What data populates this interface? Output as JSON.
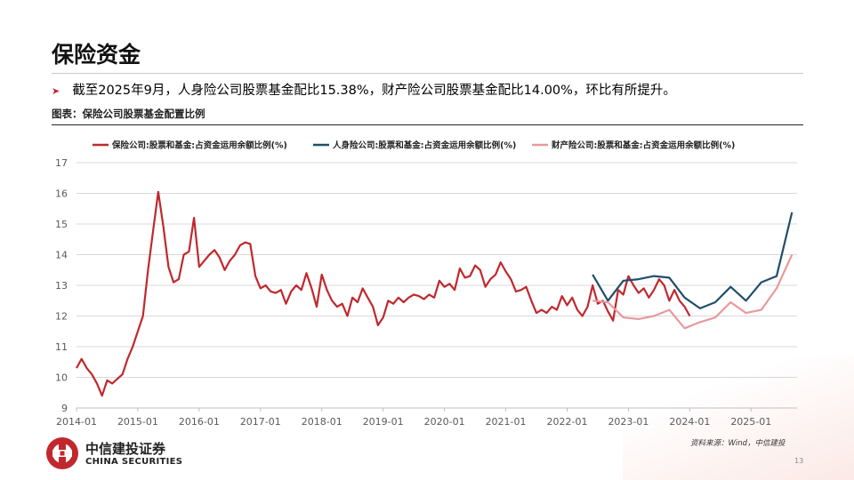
{
  "page": {
    "title": "保险资金",
    "bullet": "截至2025年9月，人身险公司股票基金配比15.38%，财产险公司股票基金配比14.00%，环比有所提升。",
    "figure_caption": "图表：保险公司股票基金配置比例",
    "source": "资料来源：Wind，中信建投",
    "page_number": "13",
    "logo_cn": "中信建投证券",
    "logo_en": "CHINA SECURITIES"
  },
  "chart_data": {
    "type": "line",
    "title": "",
    "xlabel": "",
    "ylabel": "",
    "ylim": [
      9,
      17
    ],
    "y_ticks": [
      "9",
      "10",
      "11",
      "12",
      "13",
      "14",
      "15",
      "16",
      "17"
    ],
    "x_ticks": [
      "2014-01",
      "2015-01",
      "2016-01",
      "2017-01",
      "2018-01",
      "2019-01",
      "2020-01",
      "2021-01",
      "2022-01",
      "2023-01",
      "2024-01",
      "2025-01"
    ],
    "xlim": [
      "2014-01",
      "2025-10"
    ],
    "grid": true,
    "legend_position": "top",
    "series": [
      {
        "name": "保险公司:股票和基金:占资金运用余额比例(%)",
        "color": "#c0282d",
        "points": [
          [
            "2014-01",
            10.3
          ],
          [
            "2014-02",
            10.6
          ],
          [
            "2014-03",
            10.3
          ],
          [
            "2014-04",
            10.1
          ],
          [
            "2014-05",
            9.8
          ],
          [
            "2014-06",
            9.4
          ],
          [
            "2014-07",
            9.9
          ],
          [
            "2014-08",
            9.8
          ],
          [
            "2014-09",
            9.95
          ],
          [
            "2014-10",
            10.1
          ],
          [
            "2014-11",
            10.6
          ],
          [
            "2014-12",
            11.0
          ],
          [
            "2015-01",
            11.5
          ],
          [
            "2015-02",
            12.0
          ],
          [
            "2015-03",
            13.5
          ],
          [
            "2015-04",
            14.8
          ],
          [
            "2015-05",
            16.05
          ],
          [
            "2015-06",
            14.9
          ],
          [
            "2015-07",
            13.6
          ],
          [
            "2015-08",
            13.1
          ],
          [
            "2015-09",
            13.2
          ],
          [
            "2015-10",
            14.0
          ],
          [
            "2015-11",
            14.1
          ],
          [
            "2015-12",
            15.2
          ],
          [
            "2016-01",
            13.6
          ],
          [
            "2016-02",
            13.8
          ],
          [
            "2016-03",
            14.0
          ],
          [
            "2016-04",
            14.15
          ],
          [
            "2016-05",
            13.9
          ],
          [
            "2016-06",
            13.5
          ],
          [
            "2016-07",
            13.8
          ],
          [
            "2016-08",
            14.0
          ],
          [
            "2016-09",
            14.3
          ],
          [
            "2016-10",
            14.4
          ],
          [
            "2016-11",
            14.35
          ],
          [
            "2016-12",
            13.3
          ],
          [
            "2017-01",
            12.9
          ],
          [
            "2017-02",
            13.0
          ],
          [
            "2017-03",
            12.8
          ],
          [
            "2017-04",
            12.75
          ],
          [
            "2017-05",
            12.85
          ],
          [
            "2017-06",
            12.4
          ],
          [
            "2017-07",
            12.8
          ],
          [
            "2017-08",
            13.0
          ],
          [
            "2017-09",
            12.85
          ],
          [
            "2017-10",
            13.4
          ],
          [
            "2017-11",
            12.9
          ],
          [
            "2017-12",
            12.3
          ],
          [
            "2018-01",
            13.35
          ],
          [
            "2018-02",
            12.85
          ],
          [
            "2018-03",
            12.5
          ],
          [
            "2018-04",
            12.3
          ],
          [
            "2018-05",
            12.4
          ],
          [
            "2018-06",
            12.0
          ],
          [
            "2018-07",
            12.6
          ],
          [
            "2018-08",
            12.45
          ],
          [
            "2018-09",
            12.9
          ],
          [
            "2018-10",
            12.6
          ],
          [
            "2018-11",
            12.3
          ],
          [
            "2018-12",
            11.7
          ],
          [
            "2019-01",
            11.95
          ],
          [
            "2019-02",
            12.5
          ],
          [
            "2019-03",
            12.4
          ],
          [
            "2019-04",
            12.6
          ],
          [
            "2019-05",
            12.45
          ],
          [
            "2019-06",
            12.6
          ],
          [
            "2019-07",
            12.7
          ],
          [
            "2019-08",
            12.65
          ],
          [
            "2019-09",
            12.55
          ],
          [
            "2019-10",
            12.7
          ],
          [
            "2019-11",
            12.6
          ],
          [
            "2019-12",
            13.15
          ],
          [
            "2020-01",
            12.95
          ],
          [
            "2020-02",
            13.05
          ],
          [
            "2020-03",
            12.85
          ],
          [
            "2020-04",
            13.55
          ],
          [
            "2020-05",
            13.25
          ],
          [
            "2020-06",
            13.3
          ],
          [
            "2020-07",
            13.65
          ],
          [
            "2020-08",
            13.5
          ],
          [
            "2020-09",
            12.95
          ],
          [
            "2020-10",
            13.2
          ],
          [
            "2020-11",
            13.35
          ],
          [
            "2020-12",
            13.75
          ],
          [
            "2021-01",
            13.45
          ],
          [
            "2021-02",
            13.2
          ],
          [
            "2021-03",
            12.8
          ],
          [
            "2021-04",
            12.85
          ],
          [
            "2021-05",
            12.95
          ],
          [
            "2021-06",
            12.5
          ],
          [
            "2021-07",
            12.1
          ],
          [
            "2021-08",
            12.2
          ],
          [
            "2021-09",
            12.1
          ],
          [
            "2021-10",
            12.3
          ],
          [
            "2021-11",
            12.2
          ],
          [
            "2021-12",
            12.65
          ],
          [
            "2022-01",
            12.35
          ],
          [
            "2022-02",
            12.6
          ],
          [
            "2022-03",
            12.2
          ],
          [
            "2022-04",
            12.0
          ],
          [
            "2022-05",
            12.3
          ],
          [
            "2022-06",
            13.0
          ],
          [
            "2022-07",
            12.4
          ],
          [
            "2022-08",
            12.5
          ],
          [
            "2022-09",
            12.15
          ],
          [
            "2022-10",
            11.85
          ],
          [
            "2022-11",
            12.85
          ],
          [
            "2022-12",
            12.7
          ],
          [
            "2023-01",
            13.3
          ],
          [
            "2023-02",
            13.0
          ],
          [
            "2023-03",
            12.75
          ],
          [
            "2023-04",
            12.9
          ],
          [
            "2023-05",
            12.6
          ],
          [
            "2023-06",
            12.85
          ],
          [
            "2023-07",
            13.2
          ],
          [
            "2023-08",
            13.0
          ],
          [
            "2023-09",
            12.5
          ],
          [
            "2023-10",
            12.85
          ],
          [
            "2023-11",
            12.5
          ],
          [
            "2023-12",
            12.3
          ],
          [
            "2024-01",
            12.0
          ]
        ]
      },
      {
        "name": "人身险公司:股票和基金:占资金运用余额比例(%)",
        "color": "#1f4e6b",
        "points": [
          [
            "2022-06",
            13.35
          ],
          [
            "2022-09",
            12.5
          ],
          [
            "2022-12",
            13.15
          ],
          [
            "2023-03",
            13.2
          ],
          [
            "2023-06",
            13.3
          ],
          [
            "2023-09",
            13.25
          ],
          [
            "2023-12",
            12.6
          ],
          [
            "2024-03",
            12.25
          ],
          [
            "2024-06",
            12.45
          ],
          [
            "2024-09",
            12.95
          ],
          [
            "2024-12",
            12.5
          ],
          [
            "2025-03",
            13.1
          ],
          [
            "2025-06",
            13.3
          ],
          [
            "2025-09",
            15.38
          ]
        ]
      },
      {
        "name": "财产险公司:股票和基金:占资金运用余额比例(%)",
        "color": "#e8999c",
        "points": [
          [
            "2022-06",
            12.5
          ],
          [
            "2022-09",
            12.45
          ],
          [
            "2022-12",
            11.95
          ],
          [
            "2023-03",
            11.9
          ],
          [
            "2023-06",
            12.0
          ],
          [
            "2023-09",
            12.2
          ],
          [
            "2023-12",
            11.6
          ],
          [
            "2024-03",
            11.8
          ],
          [
            "2024-06",
            11.95
          ],
          [
            "2024-09",
            12.45
          ],
          [
            "2024-12",
            12.1
          ],
          [
            "2025-03",
            12.2
          ],
          [
            "2025-06",
            12.9
          ],
          [
            "2025-09",
            14.0
          ]
        ]
      }
    ]
  }
}
